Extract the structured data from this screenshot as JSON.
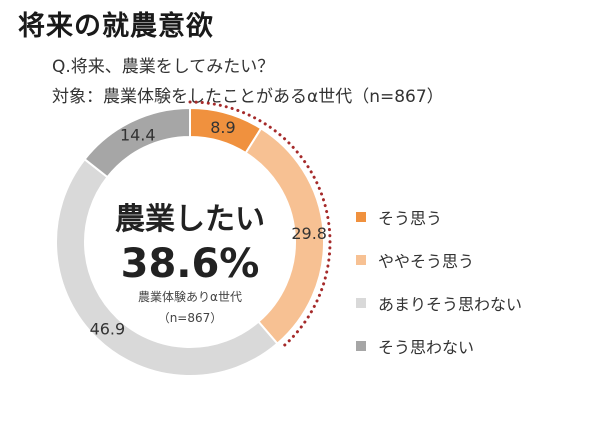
{
  "title": "将来の就農意欲",
  "question": "Q.将来、農業をしてみたい？",
  "target": "対象：農業体験をしたことがあるα世代（n=867）",
  "center": {
    "heading": "農業したい",
    "value": "38.6%",
    "sub1": "農業体験ありα世代",
    "sub2": "（n=867）"
  },
  "chart_data": {
    "type": "pie",
    "donut": true,
    "categories": [
      "そう思う",
      "ややそう思う",
      "あまりそう思わない",
      "そう思わない"
    ],
    "values": [
      8.9,
      29.8,
      46.9,
      14.4
    ],
    "value_labels": [
      "8.9",
      "29.8",
      "46.9",
      "14.4"
    ],
    "colors": [
      "#F0913E",
      "#F7C193",
      "#D9D9D9",
      "#A6A6A6"
    ],
    "highlight_color": "#A52A2A",
    "legend_position": "right"
  }
}
